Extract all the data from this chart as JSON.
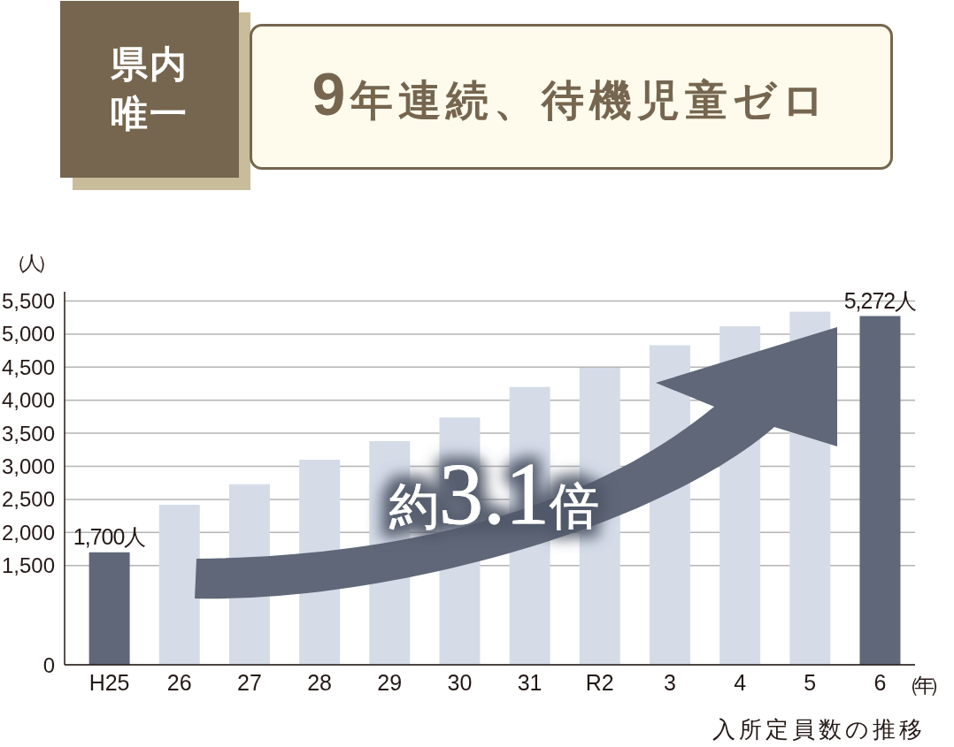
{
  "chart_data": {
    "type": "bar",
    "title": "9年連続、待機児童ゼロ",
    "subtitle": "県内唯一",
    "ylabel": "（人）",
    "xlabel": "（年）",
    "annotations": [
      "約3.1倍",
      "入所定員数の推移"
    ],
    "categories": [
      "H25",
      "26",
      "27",
      "28",
      "29",
      "30",
      "31",
      "R2",
      "3",
      "4",
      "5",
      "6"
    ],
    "values": [
      1700,
      2420,
      2730,
      3100,
      3380,
      3740,
      4200,
      4490,
      4830,
      5120,
      5340,
      5272
    ],
    "colors": [
      "#5f6778",
      "#d5dce8",
      "#d5dce8",
      "#d5dce8",
      "#d5dce8",
      "#d5dce8",
      "#d5dce8",
      "#d5dce8",
      "#d5dce8",
      "#d5dce8",
      "#d5dce8",
      "#5f6778"
    ],
    "value_labels": [
      "1,700人",
      null,
      null,
      null,
      null,
      null,
      null,
      null,
      null,
      null,
      null,
      "5,272人"
    ],
    "ylim": [
      0,
      5640
    ],
    "yticks": [
      0,
      {
        "value": 1500,
        "label": "1,500"
      },
      {
        "value": 2000,
        "label": "2,000"
      },
      {
        "value": 2500,
        "label": "2,500"
      },
      {
        "value": 3000,
        "label": "3,000"
      },
      {
        "value": 3500,
        "label": "3,500"
      },
      {
        "value": 4000,
        "label": "4,000"
      },
      {
        "value": 4500,
        "label": "4,500"
      },
      {
        "value": 5000,
        "label": "5,000"
      },
      {
        "value": 5500,
        "label": "5,500"
      }
    ],
    "grid": "y"
  }
}
